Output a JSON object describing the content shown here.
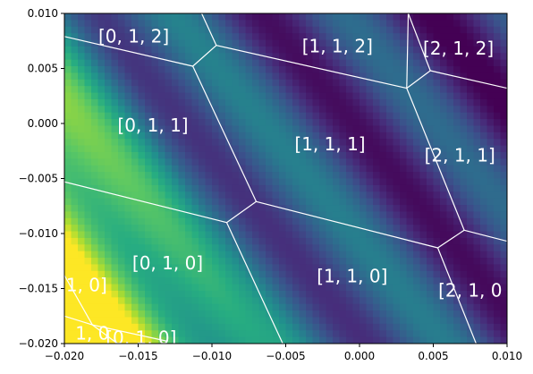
{
  "chart_data": {
    "type": "heatmap",
    "colormap": "viridis",
    "xlim": [
      -0.02,
      0.01
    ],
    "ylim": [
      -0.02,
      0.01
    ],
    "x_ticks": [
      "−0.020",
      "−0.015",
      "−0.010",
      "−0.005",
      "0.000",
      "0.005",
      "0.010"
    ],
    "y_ticks": [
      "−0.020",
      "−0.015",
      "−0.010",
      "−0.005",
      "0.000",
      "0.005",
      "0.010"
    ],
    "x_tick_values": [
      -0.02,
      -0.015,
      -0.01,
      -0.005,
      0.0,
      0.005,
      0.01
    ],
    "y_tick_values": [
      -0.02,
      -0.015,
      -0.01,
      -0.005,
      0.0,
      0.005,
      0.01
    ],
    "boundary_color": "#ffffff",
    "region_labels": [
      {
        "text": "[0, 1, 2]",
        "x": -0.0153,
        "y": 0.0078
      },
      {
        "text": "[1, 1, 2]",
        "x": -0.0015,
        "y": 0.0069
      },
      {
        "text": "[2, 1, 2]",
        "x": 0.0067,
        "y": 0.0067
      },
      {
        "text": "[0, 1, 1]",
        "x": -0.014,
        "y": -0.0003
      },
      {
        "text": "[1, 1, 1]",
        "x": -0.002,
        "y": -0.002
      },
      {
        "text": "[2, 1, 1]",
        "x": 0.0068,
        "y": -0.003
      },
      {
        "text": "[0, 1, 0]",
        "x": -0.013,
        "y": -0.0128
      },
      {
        "text": "[1, 1, 0]",
        "x": -0.0005,
        "y": -0.014
      },
      {
        "text": "[2, 1, 0",
        "x": 0.0075,
        "y": -0.0153
      },
      {
        "text": "1, 0]",
        "x": -0.0185,
        "y": -0.0148
      },
      {
        "text": "1, 0",
        "x": -0.0181,
        "y": -0.0192
      },
      {
        "text": "[0, 1, 0]",
        "x": -0.0148,
        "y": -0.0196
      }
    ],
    "boundaries": [
      [
        [
          -0.02,
          0.0079
        ],
        [
          -0.0113,
          0.0052
        ]
      ],
      [
        [
          -0.0113,
          0.0052
        ],
        [
          -0.0097,
          0.0071
        ]
      ],
      [
        [
          -0.0097,
          0.0071
        ],
        [
          -0.0107,
          0.01
        ]
      ],
      [
        [
          -0.0097,
          0.0071
        ],
        [
          0.0032,
          0.0032
        ]
      ],
      [
        [
          0.0032,
          0.0032
        ],
        [
          0.0033,
          0.01
        ]
      ],
      [
        [
          0.0032,
          0.0032
        ],
        [
          0.0048,
          0.0048
        ]
      ],
      [
        [
          0.0048,
          0.0048
        ],
        [
          0.0033,
          0.01
        ]
      ],
      [
        [
          0.0048,
          0.0048
        ],
        [
          0.01,
          0.0032
        ]
      ],
      [
        [
          -0.0113,
          0.0052
        ],
        [
          -0.007,
          -0.0071
        ]
      ],
      [
        [
          -0.007,
          -0.0071
        ],
        [
          -0.009,
          -0.009
        ]
      ],
      [
        [
          -0.02,
          -0.0053
        ],
        [
          -0.009,
          -0.009
        ]
      ],
      [
        [
          -0.009,
          -0.009
        ],
        [
          -0.0052,
          -0.02
        ]
      ],
      [
        [
          -0.007,
          -0.0071
        ],
        [
          0.0053,
          -0.0113
        ]
      ],
      [
        [
          0.0032,
          0.0032
        ],
        [
          0.0071,
          -0.0097
        ]
      ],
      [
        [
          0.0071,
          -0.0097
        ],
        [
          0.0053,
          -0.0113
        ]
      ],
      [
        [
          0.0071,
          -0.0097
        ],
        [
          0.01,
          -0.0107
        ]
      ],
      [
        [
          0.0053,
          -0.0113
        ],
        [
          0.0079,
          -0.02
        ]
      ],
      [
        [
          -0.02,
          -0.0138
        ],
        [
          -0.0181,
          -0.0183
        ]
      ],
      [
        [
          -0.02,
          -0.0175
        ],
        [
          -0.0181,
          -0.0183
        ]
      ],
      [
        [
          -0.0181,
          -0.0183
        ],
        [
          -0.0164,
          -0.02
        ]
      ],
      [
        [
          -0.0181,
          -0.0183
        ],
        [
          -0.013,
          -0.0198
        ]
      ]
    ]
  }
}
